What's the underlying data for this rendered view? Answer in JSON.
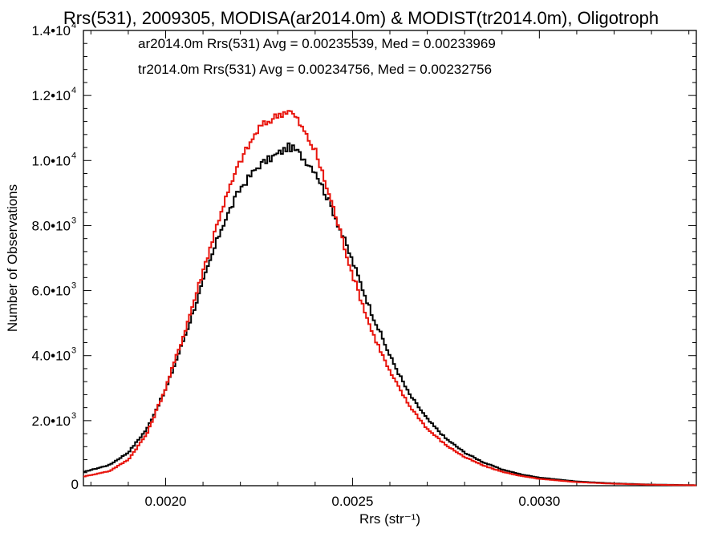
{
  "chart_data": {
    "type": "histogram",
    "title": "Rrs(531), 2009305, MODISA(ar2014.0m) & MODIST(tr2014.0m), Oligotroph",
    "xlabel": "Rrs (str⁻¹)",
    "ylabel": "Number of Observations",
    "xlim": [
      0.00178,
      0.00342
    ],
    "ylim": [
      0,
      14000
    ],
    "x_ticks": [
      {
        "value": 0.002,
        "label": "0.0020"
      },
      {
        "value": 0.0025,
        "label": "0.0025"
      },
      {
        "value": 0.003,
        "label": "0.0030"
      }
    ],
    "y_ticks": [
      {
        "value": 0,
        "mantissa": "0",
        "exp": ""
      },
      {
        "value": 2000,
        "mantissa": "2.0•10",
        "exp": "3"
      },
      {
        "value": 4000,
        "mantissa": "4.0•10",
        "exp": "3"
      },
      {
        "value": 6000,
        "mantissa": "6.0•10",
        "exp": "3"
      },
      {
        "value": 8000,
        "mantissa": "8.0•10",
        "exp": "3"
      },
      {
        "value": 10000,
        "mantissa": "1.0•10",
        "exp": "4"
      },
      {
        "value": 12000,
        "mantissa": "1.2•10",
        "exp": "4"
      },
      {
        "value": 14000,
        "mantissa": "1.4•10",
        "exp": "4"
      }
    ],
    "legend_placement": "top-left",
    "series": [
      {
        "name": "ar2014.0m",
        "legend_text": "ar2014.0m Rrs(531) Avg = 0.00235539, Med = 0.00233969",
        "color": "#000000",
        "points": [
          [
            0.00178,
            420
          ],
          [
            0.00185,
            640
          ],
          [
            0.0019,
            1020
          ],
          [
            0.00195,
            1750
          ],
          [
            0.002,
            2950
          ],
          [
            0.00205,
            4550
          ],
          [
            0.0021,
            6250
          ],
          [
            0.00215,
            7950
          ],
          [
            0.0022,
            9150
          ],
          [
            0.00225,
            9850
          ],
          [
            0.0023,
            10200
          ],
          [
            0.00233,
            10420
          ],
          [
            0.00235,
            10300
          ],
          [
            0.0024,
            9700
          ],
          [
            0.00245,
            8400
          ],
          [
            0.0025,
            6900
          ],
          [
            0.00255,
            5350
          ],
          [
            0.0026,
            4000
          ],
          [
            0.00265,
            2850
          ],
          [
            0.0027,
            2050
          ],
          [
            0.00275,
            1450
          ],
          [
            0.0028,
            1020
          ],
          [
            0.00285,
            720
          ],
          [
            0.0029,
            500
          ],
          [
            0.00295,
            350
          ],
          [
            0.003,
            250
          ],
          [
            0.0031,
            130
          ],
          [
            0.0032,
            70
          ],
          [
            0.0033,
            35
          ],
          [
            0.00342,
            15
          ]
        ]
      },
      {
        "name": "tr2014.0m",
        "legend_text": "tr2014.0m Rrs(531) Avg = 0.00234756, Med = 0.00232756",
        "color": "#e8140c",
        "points": [
          [
            0.00178,
            280
          ],
          [
            0.00185,
            450
          ],
          [
            0.0019,
            800
          ],
          [
            0.00195,
            1600
          ],
          [
            0.002,
            3000
          ],
          [
            0.00205,
            4700
          ],
          [
            0.0021,
            6600
          ],
          [
            0.00215,
            8500
          ],
          [
            0.0022,
            10000
          ],
          [
            0.00225,
            11000
          ],
          [
            0.0023,
            11400
          ],
          [
            0.00233,
            11550
          ],
          [
            0.00235,
            11300
          ],
          [
            0.0024,
            10300
          ],
          [
            0.00245,
            8500
          ],
          [
            0.0025,
            6500
          ],
          [
            0.00255,
            4800
          ],
          [
            0.0026,
            3500
          ],
          [
            0.00265,
            2500
          ],
          [
            0.0027,
            1750
          ],
          [
            0.00275,
            1250
          ],
          [
            0.0028,
            880
          ],
          [
            0.00285,
            620
          ],
          [
            0.0029,
            430
          ],
          [
            0.00295,
            300
          ],
          [
            0.003,
            210
          ],
          [
            0.0031,
            110
          ],
          [
            0.0032,
            60
          ],
          [
            0.0033,
            30
          ],
          [
            0.00342,
            12
          ]
        ]
      }
    ]
  }
}
